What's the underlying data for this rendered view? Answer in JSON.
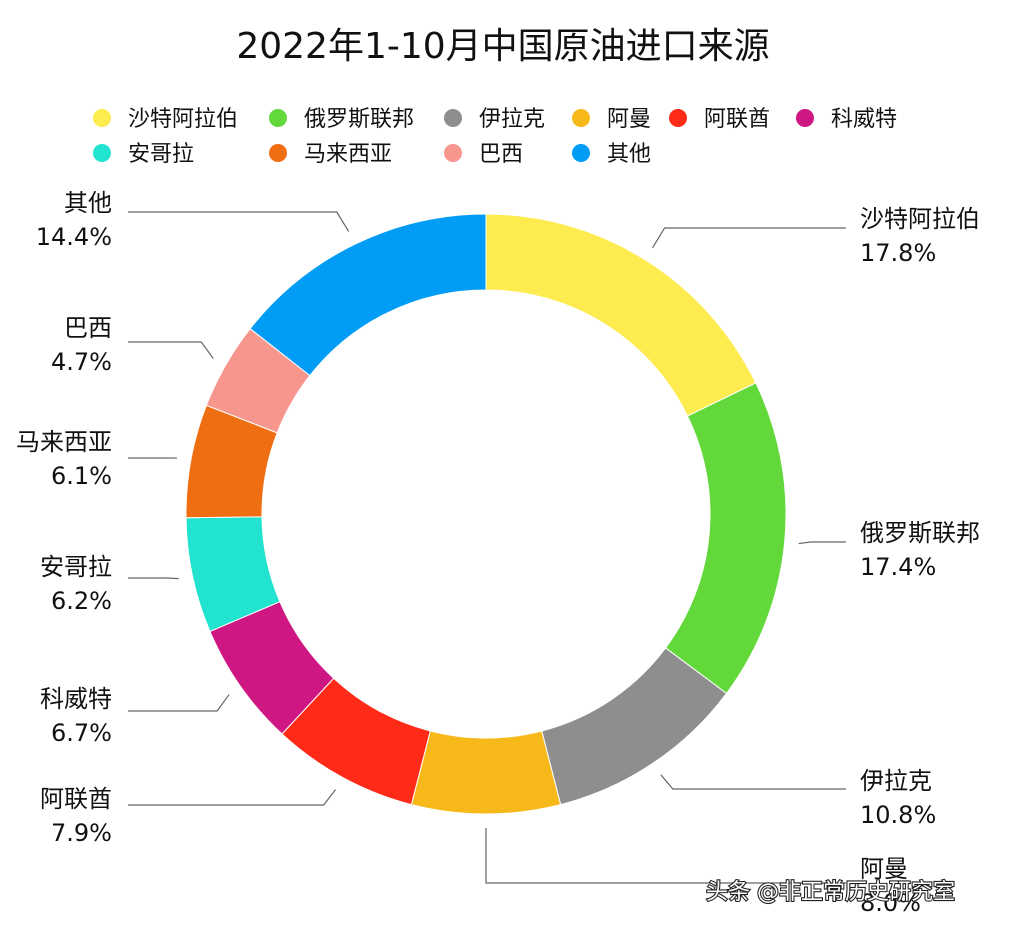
{
  "chart_data": {
    "type": "pie",
    "variant": "donut",
    "title": "2022年1-10月中国原油进口来源",
    "legend_position": "top",
    "start": "12 o'clock",
    "direction": "clockwise",
    "slices": [
      {
        "label": "沙特阿拉伯",
        "value": 17.8,
        "value_label": "17.8%",
        "color": "#FDEB4F"
      },
      {
        "label": "俄罗斯联邦",
        "value": 17.4,
        "value_label": "17.4%",
        "color": "#62D83A"
      },
      {
        "label": "伊拉克",
        "value": 10.8,
        "value_label": "10.8%",
        "color": "#8E8E8E"
      },
      {
        "label": "阿曼",
        "value": 8.0,
        "value_label": "8.0%",
        "color": "#F7B91A"
      },
      {
        "label": "阿联酋",
        "value": 7.9,
        "value_label": "7.9%",
        "color": "#FF2A17"
      },
      {
        "label": "科威特",
        "value": 6.7,
        "value_label": "6.7%",
        "color": "#CF1784"
      },
      {
        "label": "安哥拉",
        "value": 6.2,
        "value_label": "6.2%",
        "color": "#21E3CF"
      },
      {
        "label": "马来西亚",
        "value": 6.1,
        "value_label": "6.1%",
        "color": "#F06E12"
      },
      {
        "label": "巴西",
        "value": 4.7,
        "value_label": "4.7%",
        "color": "#F7968D"
      },
      {
        "label": "其他",
        "value": 14.4,
        "value_label": "14.4%",
        "color": "#009CF5"
      }
    ]
  },
  "watermark": "头条 @非正常历史研究室"
}
